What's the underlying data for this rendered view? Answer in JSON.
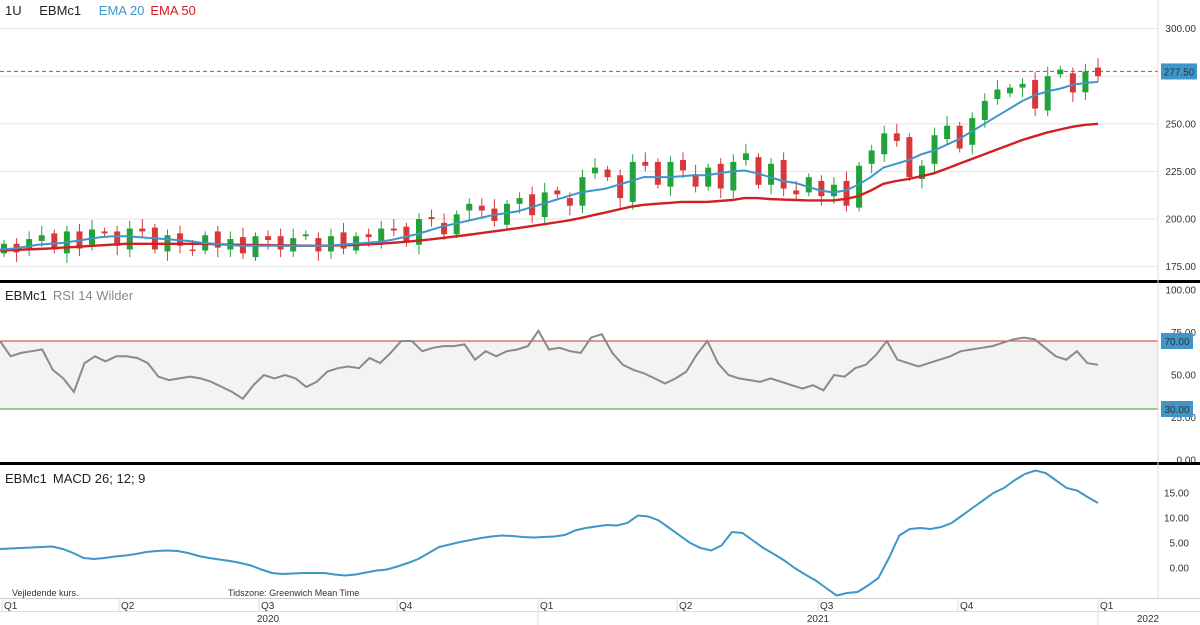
{
  "price_header": {
    "interval": "1U",
    "symbol": "EBMc1",
    "ema_fast": "EMA 20",
    "ema_slow": "EMA 50"
  },
  "rsi_header": {
    "symbol": "EBMc1",
    "name": "RSI 14 Wilder"
  },
  "macd_header": {
    "symbol": "EBMc1",
    "name": "MACD 26; 12; 9"
  },
  "footer": {
    "note": "Vejledende kurs.",
    "timezone": "Tidszone: Greenwich Mean Time"
  },
  "colors": {
    "up": "#22a33a",
    "down": "#d9383a",
    "ema_fast": "#3f96c9",
    "ema_slow": "#d11f26",
    "rsi": "#8a8a8a",
    "macd": "#3f96c9",
    "rsi_upper": "#c0392b",
    "rsi_lower": "#2ca02c",
    "last_price": "#d9383a"
  },
  "chart_data": [
    {
      "type": "candlestick",
      "title": "EBMc1",
      "ylim": [
        168,
        315
      ],
      "yticks": [
        "175.00",
        "200.00",
        "225.00",
        "250.00",
        "275.00",
        "300.00"
      ],
      "last_price": "277.50",
      "series": [
        {
          "name": "EMA 20",
          "values": [
            184,
            184.5,
            185.5,
            186.5,
            187,
            187.5,
            188.5,
            189.5,
            190.5,
            191,
            191,
            190.5,
            190,
            189.5,
            189,
            188.5,
            187.5,
            187,
            186.5,
            186,
            186,
            186,
            186,
            186,
            186,
            186,
            186,
            186.5,
            187,
            187.5,
            188,
            189,
            190.5,
            192,
            194,
            196,
            197.5,
            199,
            200.5,
            202,
            203,
            204,
            206,
            208,
            210,
            212,
            214,
            215,
            216,
            218,
            220,
            222,
            222,
            222,
            222.5,
            223,
            223,
            224,
            225,
            225.5,
            224,
            222,
            220,
            219,
            217,
            215,
            214,
            215,
            218,
            222,
            227,
            229,
            231,
            234,
            236,
            239,
            242,
            246,
            250,
            254,
            258,
            262,
            265,
            267,
            268.5,
            270.5,
            271.5,
            272
          ]
        },
        {
          "name": "EMA 50",
          "values": [
            183.5,
            183.7,
            184,
            184.3,
            184.6,
            185,
            185.4,
            185.8,
            186.2,
            186.6,
            187,
            187,
            187,
            187,
            187,
            187,
            187,
            186.8,
            186.6,
            186.5,
            186.4,
            186.3,
            186.2,
            186.1,
            186,
            186,
            186,
            186.2,
            186.4,
            186.7,
            187,
            187.5,
            188,
            188.6,
            189.2,
            190,
            190.8,
            191.6,
            192.5,
            193.4,
            194.3,
            195.2,
            196.2,
            197.2,
            198.2,
            199.2,
            200.5,
            202,
            203.5,
            205,
            206.5,
            207.5,
            208,
            208.5,
            209,
            209,
            209,
            209.5,
            210,
            211,
            211,
            210.5,
            210.2,
            210,
            209.8,
            209.8,
            209.8,
            210.5,
            212,
            215,
            218.5,
            220,
            221,
            222.5,
            224,
            226.5,
            229,
            231.5,
            234,
            236.5,
            239,
            241.5,
            243.5,
            245.5,
            247,
            248.5,
            249.5,
            250
          ]
        }
      ]
    },
    {
      "type": "line",
      "title": "RSI 14 Wilder",
      "ylim": [
        0,
        100
      ],
      "yticks": [
        "0.00",
        "25.00",
        "50.00",
        "75.00",
        "100.00"
      ],
      "upper_label": "70.00",
      "lower_label": "30.00",
      "upper": 70,
      "lower": 30,
      "values": [
        70,
        61,
        63,
        64,
        65,
        53,
        48,
        40,
        57,
        61,
        58,
        61,
        61,
        60,
        57,
        49,
        47,
        48,
        49,
        48,
        46,
        43,
        40,
        36,
        44,
        50,
        48,
        50,
        48,
        43,
        46,
        52,
        54,
        55,
        54,
        60,
        57,
        63,
        70,
        70,
        64,
        66,
        67,
        67,
        68,
        59,
        64,
        61,
        64,
        65,
        67,
        76,
        65,
        66,
        64,
        63,
        72,
        74,
        63,
        56,
        53,
        51,
        48,
        45,
        48,
        52,
        62,
        70,
        57,
        50,
        48,
        47,
        46,
        48,
        46,
        44,
        42,
        44,
        41,
        50,
        49,
        54,
        56,
        62,
        70,
        59,
        57,
        55,
        57,
        59,
        61,
        64,
        65,
        66,
        67,
        69,
        71,
        72,
        71,
        66,
        61,
        59,
        64,
        57,
        56
      ]
    },
    {
      "type": "line",
      "title": "MACD 26; 12; 9",
      "ylim": [
        -6,
        20
      ],
      "yticks": [
        "0.00",
        "5.00",
        "10.00",
        "15.00"
      ],
      "values": [
        3.8,
        3.9,
        4,
        4.1,
        4.2,
        4.3,
        3.8,
        3,
        2,
        1.8,
        2,
        2.3,
        2.5,
        2.8,
        3.2,
        3.4,
        3.5,
        3.4,
        3,
        2.4,
        2,
        1.7,
        1.4,
        1,
        0.5,
        -0.3,
        -1,
        -1.2,
        -1.1,
        -1,
        -1,
        -1,
        -1.3,
        -1.5,
        -1.3,
        -0.9,
        -0.5,
        -0.3,
        0.3,
        1,
        1.8,
        3,
        4.2,
        4.7,
        5.2,
        5.6,
        6,
        6.3,
        6.5,
        6.4,
        6.2,
        6.1,
        6.2,
        6.3,
        6.6,
        7.5,
        8,
        8.3,
        8.6,
        8.5,
        9,
        10.5,
        10.3,
        9.5,
        8,
        6.5,
        5,
        4,
        3.5,
        4.5,
        7.2,
        7,
        5.5,
        4,
        2.8,
        1.5,
        0,
        -1.3,
        -2.5,
        -4,
        -5.5,
        -5,
        -4.8,
        -3.5,
        -2,
        2,
        6.5,
        7.8,
        8,
        7.8,
        8.2,
        9,
        10.5,
        12,
        13.5,
        15,
        16,
        17.5,
        18.8,
        19.5,
        19,
        17.5,
        16,
        15.5,
        14.2,
        13
      ]
    }
  ],
  "x_axis": {
    "quarters": [
      "Q1",
      "Q2",
      "Q3",
      "Q4",
      "Q1",
      "Q2",
      "Q3",
      "Q4",
      "Q1"
    ],
    "years": [
      "2020",
      "2021",
      "2022"
    ]
  }
}
